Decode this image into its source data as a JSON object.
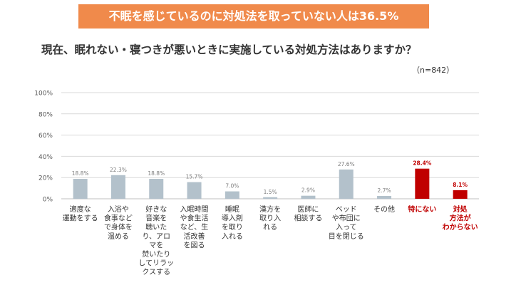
{
  "header": {
    "banner": "不眠を感じているのに対処法を取っていない人は36.5%",
    "question": "現在、眠れない・寝つきが悪いときに実施している対処方法はありますか？",
    "sample_size": "（n=842）"
  },
  "colors": {
    "banner_bg": "#f08a4b",
    "bar_default": "#b3c1cb",
    "bar_highlight": "#c00000",
    "highlight_text": "#c00000"
  },
  "chart_data": {
    "type": "bar",
    "ylim": [
      0,
      100
    ],
    "yticks": [
      "0%",
      "20%",
      "40%",
      "60%",
      "80%",
      "100%"
    ],
    "grid": true,
    "categories": [
      [
        "適度な",
        "運動をする"
      ],
      [
        "入浴や",
        "食事など",
        "で身体を",
        "温める"
      ],
      [
        "好きな",
        "音楽を",
        "聴いた",
        "り、アロ",
        "マを",
        "焚いたり",
        "してリラッ",
        "クスする"
      ],
      [
        "入眠時間",
        "や食生活",
        "など、生",
        "活改善",
        "を図る"
      ],
      [
        "睡眠",
        "導入剤",
        "を取り",
        "入れる"
      ],
      [
        "漢方を",
        "取り入",
        "れる"
      ],
      [
        "医師に",
        "相談する"
      ],
      [
        "ベッド",
        "や布団に",
        "入って",
        "目を閉じる"
      ],
      [
        "その他"
      ],
      [
        "特にない"
      ],
      [
        "対処",
        "方法が",
        "わからない"
      ]
    ],
    "values": [
      18.8,
      22.3,
      18.8,
      15.7,
      7.0,
      1.5,
      2.9,
      27.6,
      2.7,
      28.4,
      8.1
    ],
    "value_labels": [
      "18.8%",
      "22.3%",
      "18.8%",
      "15.7%",
      "7.0%",
      "1.5%",
      "2.9%",
      "27.6%",
      "2.7%",
      "28.4%",
      "8.1%"
    ],
    "highlight": [
      false,
      false,
      false,
      false,
      false,
      false,
      false,
      false,
      false,
      true,
      true
    ]
  }
}
